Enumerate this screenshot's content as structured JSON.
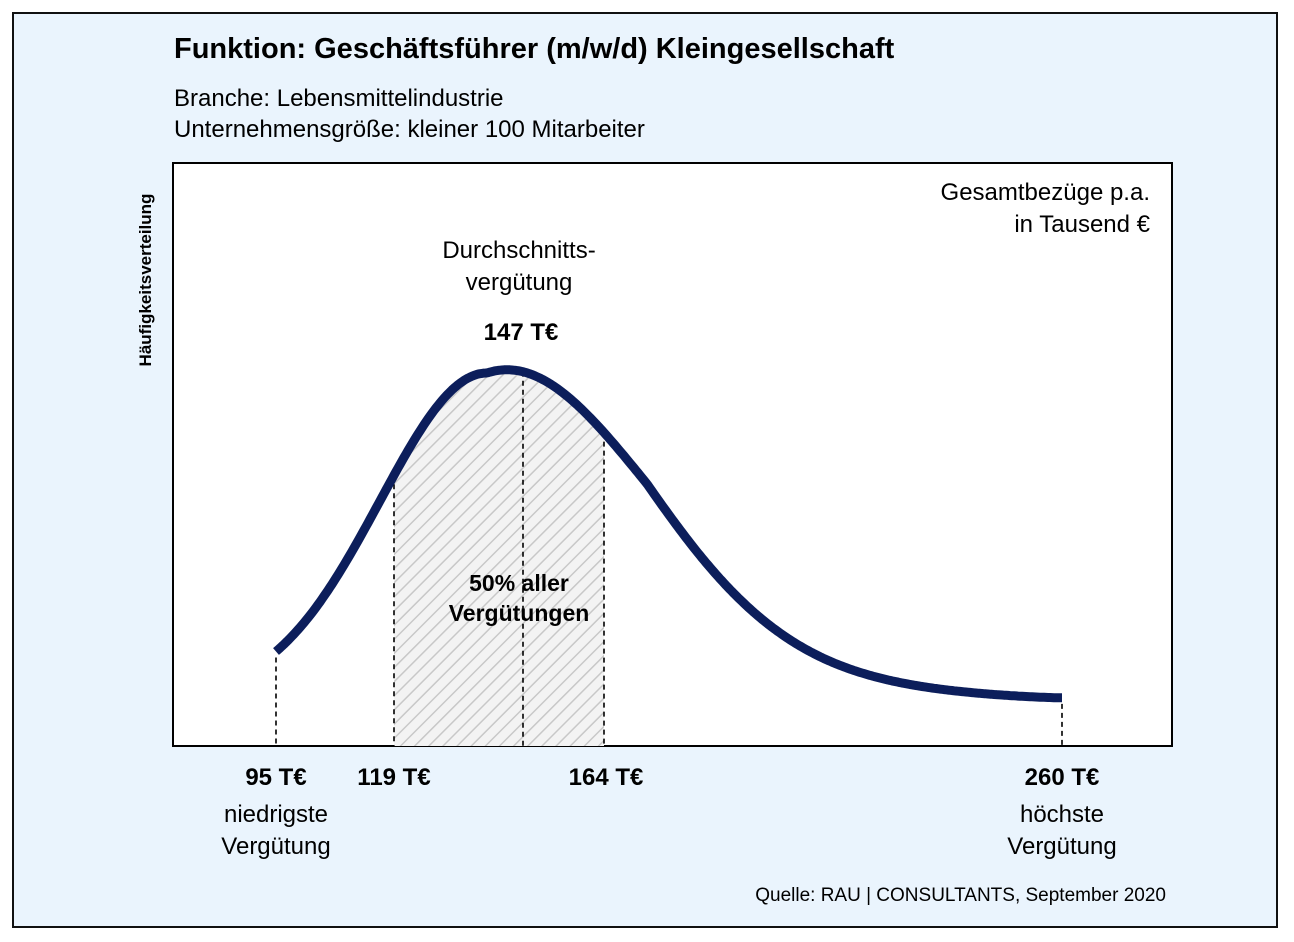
{
  "title": "Funktion: Geschäftsführer (m/w/d) Kleingesellschaft",
  "subtitle_lines": [
    "Branche: Lebensmittelindustrie",
    "Unternehmensgröße: kleiner 100 Mitarbeiter"
  ],
  "source": "Quelle: RAU | CONSULTANTS, September 2020",
  "colors": {
    "background": "#eaf4fd",
    "curve": "#0c1e5b",
    "hatch": "#c8c8c8",
    "text": "#000000"
  },
  "chart_data": {
    "type": "area",
    "title": "Funktion: Geschäftsführer (m/w/d) Kleingesellschaft",
    "ylabel": "Häufigkeitsverteilung",
    "unit_label_lines": [
      "Gesamtbezüge p.a.",
      "in Tausend €"
    ],
    "grid": false,
    "distribution": {
      "min": 95,
      "q1": 119,
      "mean": 147,
      "q3": 164,
      "max": 260
    },
    "annotations": {
      "mean_lines": [
        "Durchschnitts-",
        "vergütung"
      ],
      "mean_value": "147 T€",
      "iqr_lines": [
        "50% aller",
        "Vergütungen"
      ]
    },
    "tick_labels": [
      {
        "value": 95,
        "label": "95 T€",
        "sublabel_lines": [
          "niedrigste",
          "Vergütung"
        ]
      },
      {
        "value": 119,
        "label": "119 T€",
        "sublabel_lines": []
      },
      {
        "value": 164,
        "label": "164 T€",
        "sublabel_lines": []
      },
      {
        "value": 260,
        "label": "260 T€",
        "sublabel_lines": [
          "höchste",
          "Vergütung"
        ]
      }
    ]
  }
}
